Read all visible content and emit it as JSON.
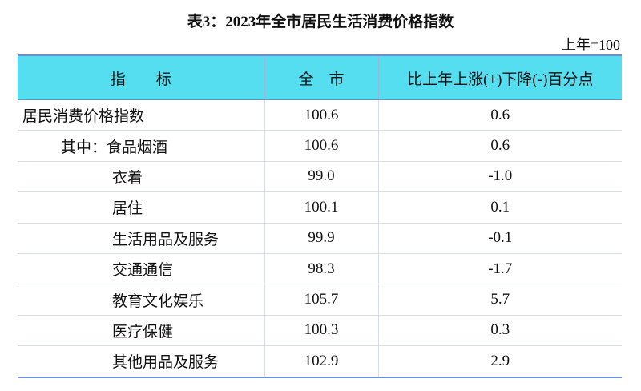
{
  "title": "表3：2023年全市居民生活消费价格指数",
  "unit_note": "上年=100",
  "table": {
    "header": [
      "指　　标",
      "全　市",
      "比上年上涨(+)下降(-)百分点"
    ],
    "rows": [
      [
        "居民消费价格指数",
        "100.6",
        "0.6"
      ],
      [
        "其中：食品烟酒",
        "100.6",
        "0.6"
      ],
      [
        "衣着",
        "99.0",
        "-1.0"
      ],
      [
        "居住",
        "100.1",
        "0.1"
      ],
      [
        "生活用品及服务",
        "99.9",
        "-0.1"
      ],
      [
        "交通通信",
        "98.3",
        "-1.7"
      ],
      [
        "教育文化娱乐",
        "105.7",
        "5.7"
      ],
      [
        "医疗保健",
        "100.3",
        "0.3"
      ],
      [
        "其他用品及服务",
        "102.9",
        "2.9"
      ]
    ]
  }
}
